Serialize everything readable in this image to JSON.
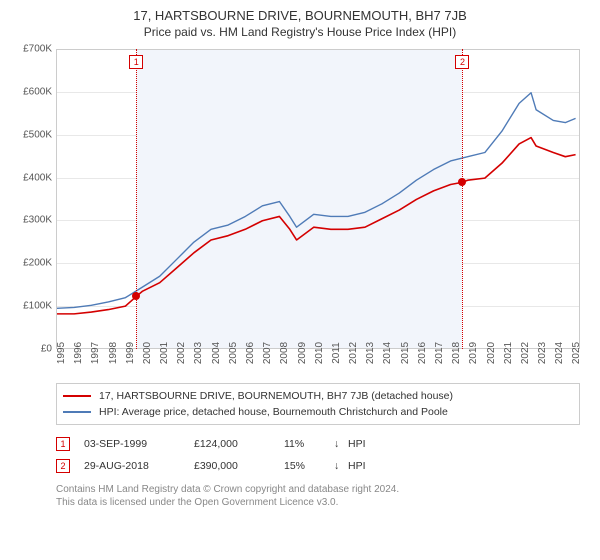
{
  "title": "17, HARTSBOURNE DRIVE, BOURNEMOUTH, BH7 7JB",
  "subtitle": "Price paid vs. HM Land Registry's House Price Index (HPI)",
  "chart": {
    "type": "line",
    "background_color": "#ffffff",
    "grid_color": "#e8e8e8",
    "plot_border_color": "#cccccc",
    "highlight_band_color": "#f2f5fb",
    "highlight_start_year": 1999.67,
    "highlight_end_year": 2018.66,
    "xlim": [
      1995,
      2025.5
    ],
    "xticks": [
      1995,
      1996,
      1997,
      1998,
      1999,
      2000,
      2001,
      2002,
      2003,
      2004,
      2005,
      2006,
      2007,
      2008,
      2009,
      2010,
      2011,
      2012,
      2013,
      2014,
      2015,
      2016,
      2017,
      2018,
      2019,
      2020,
      2021,
      2022,
      2023,
      2024,
      2025
    ],
    "ylim": [
      0,
      700000
    ],
    "yticks": [
      0,
      100000,
      200000,
      300000,
      400000,
      500000,
      600000,
      700000
    ],
    "ytick_labels": [
      "£0",
      "£100K",
      "£200K",
      "£300K",
      "£400K",
      "£500K",
      "£600K",
      "£700K"
    ],
    "axis_font_size": 10,
    "axis_text_color": "#555555",
    "series": [
      {
        "id": "price_paid",
        "label": "17, HARTSBOURNE DRIVE, BOURNEMOUTH, BH7 7JB (detached house)",
        "color": "#d40000",
        "line_width": 1.6,
        "points": [
          [
            1995,
            82000
          ],
          [
            1996,
            82000
          ],
          [
            1997,
            86000
          ],
          [
            1998,
            92000
          ],
          [
            1999,
            100000
          ],
          [
            1999.67,
            124000
          ],
          [
            2000,
            135000
          ],
          [
            2001,
            155000
          ],
          [
            2002,
            190000
          ],
          [
            2003,
            225000
          ],
          [
            2004,
            255000
          ],
          [
            2005,
            265000
          ],
          [
            2006,
            280000
          ],
          [
            2007,
            300000
          ],
          [
            2008,
            310000
          ],
          [
            2008.6,
            280000
          ],
          [
            2009,
            255000
          ],
          [
            2010,
            285000
          ],
          [
            2011,
            280000
          ],
          [
            2012,
            280000
          ],
          [
            2013,
            285000
          ],
          [
            2014,
            305000
          ],
          [
            2015,
            325000
          ],
          [
            2016,
            350000
          ],
          [
            2017,
            370000
          ],
          [
            2018,
            385000
          ],
          [
            2018.66,
            390000
          ],
          [
            2019,
            395000
          ],
          [
            2020,
            400000
          ],
          [
            2021,
            435000
          ],
          [
            2022,
            480000
          ],
          [
            2022.7,
            495000
          ],
          [
            2023,
            475000
          ],
          [
            2024,
            460000
          ],
          [
            2024.7,
            450000
          ],
          [
            2025.3,
            455000
          ]
        ]
      },
      {
        "id": "hpi",
        "label": "HPI: Average price, detached house, Bournemouth Christchurch and Poole",
        "color": "#4f7bb7",
        "line_width": 1.4,
        "points": [
          [
            1995,
            95000
          ],
          [
            1996,
            97000
          ],
          [
            1997,
            102000
          ],
          [
            1998,
            110000
          ],
          [
            1999,
            120000
          ],
          [
            2000,
            145000
          ],
          [
            2001,
            170000
          ],
          [
            2002,
            210000
          ],
          [
            2003,
            250000
          ],
          [
            2004,
            280000
          ],
          [
            2005,
            290000
          ],
          [
            2006,
            310000
          ],
          [
            2007,
            335000
          ],
          [
            2008,
            345000
          ],
          [
            2008.6,
            310000
          ],
          [
            2009,
            285000
          ],
          [
            2010,
            315000
          ],
          [
            2011,
            310000
          ],
          [
            2012,
            310000
          ],
          [
            2013,
            320000
          ],
          [
            2014,
            340000
          ],
          [
            2015,
            365000
          ],
          [
            2016,
            395000
          ],
          [
            2017,
            420000
          ],
          [
            2018,
            440000
          ],
          [
            2019,
            450000
          ],
          [
            2020,
            460000
          ],
          [
            2021,
            510000
          ],
          [
            2022,
            575000
          ],
          [
            2022.7,
            600000
          ],
          [
            2023,
            560000
          ],
          [
            2024,
            535000
          ],
          [
            2024.7,
            530000
          ],
          [
            2025.3,
            540000
          ]
        ]
      }
    ],
    "markers": [
      {
        "n": "1",
        "year": 1999.67,
        "price": 124000,
        "box_color": "#d40000",
        "line_color": "#d40000"
      },
      {
        "n": "2",
        "year": 2018.66,
        "price": 390000,
        "box_color": "#d40000",
        "line_color": "#d40000"
      }
    ],
    "marker_dot_color": "#d40000"
  },
  "legend": {
    "border_color": "#cccccc",
    "font_size": 10.5
  },
  "transactions": [
    {
      "n": "1",
      "date": "03-SEP-1999",
      "price": "£124,000",
      "pct": "11%",
      "arrow": "↓",
      "rel": "HPI",
      "box_color": "#d40000"
    },
    {
      "n": "2",
      "date": "29-AUG-2018",
      "price": "£390,000",
      "pct": "15%",
      "arrow": "↓",
      "rel": "HPI",
      "box_color": "#d40000"
    }
  ],
  "footer": {
    "line1": "Contains HM Land Registry data © Crown copyright and database right 2024.",
    "line2": "This data is licensed under the Open Government Licence v3.0.",
    "color": "#888888"
  }
}
